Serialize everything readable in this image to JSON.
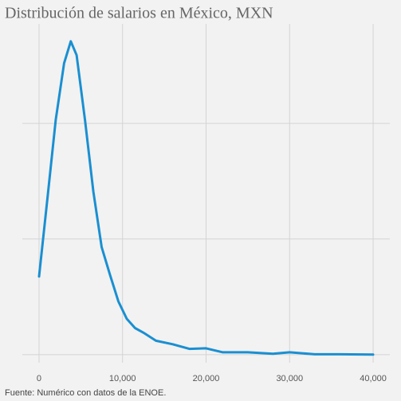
{
  "chart_data": {
    "type": "line",
    "title": "Distribución de salarios en México, MXN",
    "source": "Fuente: Numérico con datos de la ENOE.",
    "x": [
      0,
      1000,
      2000,
      3000,
      3800,
      4500,
      5500,
      6500,
      7500,
      8500,
      9500,
      10500,
      11500,
      12500,
      14000,
      16000,
      18000,
      20000,
      22000,
      25000,
      28000,
      30000,
      33000,
      36000,
      40000
    ],
    "series": [
      {
        "color": "#1a8fd1",
        "values": [
          0.676,
          1.345,
          2.03,
          2.52,
          2.71,
          2.59,
          2.03,
          1.41,
          0.93,
          0.69,
          0.46,
          0.31,
          0.23,
          0.19,
          0.12,
          0.09,
          0.05,
          0.055,
          0.02,
          0.02,
          0.007,
          0.02,
          0.003,
          0.003,
          0
        ]
      }
    ],
    "xlim": [
      -2000,
      42000
    ],
    "xticks": [
      0,
      {
        "value": 10000,
        "label": "10,000"
      },
      {
        "value": 20000,
        "label": "20,000"
      },
      {
        "value": 30000,
        "label": "30,000"
      },
      {
        "value": 40000,
        "label": "40,000"
      }
    ],
    "ylim": [
      -0.07,
      2.86
    ],
    "yticks": [
      0,
      1,
      2
    ],
    "grid": true
  }
}
